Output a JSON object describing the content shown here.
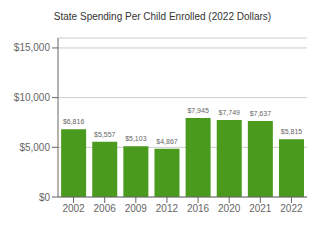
{
  "chart_data": {
    "type": "bar",
    "title": "State Spending Per Child Enrolled (2022 Dollars)",
    "categories": [
      "2002",
      "2006",
      "2009",
      "2012",
      "2016",
      "2020",
      "2021",
      "2022"
    ],
    "values": [
      6816,
      5557,
      5103,
      4867,
      7945,
      7749,
      7637,
      5815
    ],
    "value_labels": [
      "$6,816",
      "$5,557",
      "$5,103",
      "$4,867",
      "$7,945",
      "$7,749",
      "$7,637",
      "$5,815"
    ],
    "data_labels": true,
    "color": "#4a9a1e",
    "ylim": [
      0,
      16000
    ],
    "yticks": [
      {
        "value": 0,
        "label": "$0"
      },
      {
        "value": 5000,
        "label": "$5,000"
      },
      {
        "value": 10000,
        "label": "$10,000"
      },
      {
        "value": 15000,
        "label": "$15,000"
      }
    ],
    "grid": true
  }
}
